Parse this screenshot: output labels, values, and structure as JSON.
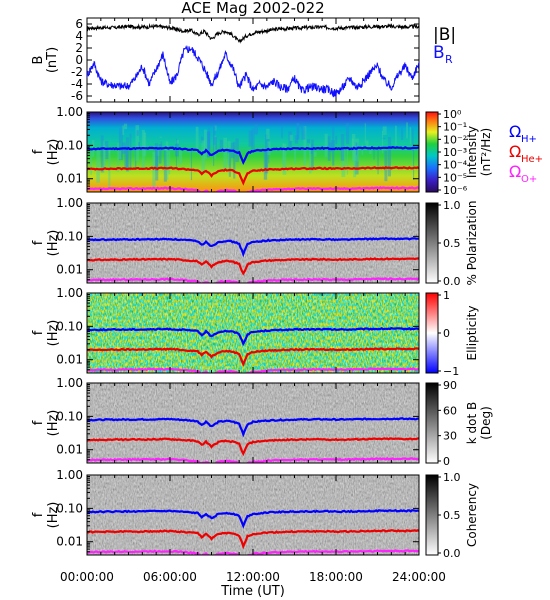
{
  "figure": {
    "title": "ACE Mag 2002-022",
    "time_axis": {
      "label": "Time (UT)",
      "ticks": [
        "00:00:00",
        "06:00:00",
        "12:00:00",
        "18:00:00",
        "24:00:00"
      ]
    },
    "freq_axis": {
      "label_f": "f",
      "label_unit": "(Hz)",
      "ticks": [
        "1.00",
        "0.10",
        "0.01"
      ]
    },
    "colors": {
      "bmag": "#000000",
      "br": "#1010ff",
      "h_plus": "#0000ff",
      "he_plus": "#ee0000",
      "o_plus": "#ff22ff",
      "background": "#ffffff"
    }
  },
  "legend": {
    "bmag": "|B|",
    "br": "B",
    "br_sub": "R",
    "omega": "Ω",
    "h_plus": "H+",
    "he_plus": "He+",
    "o_plus": "O+"
  },
  "chart_data": [
    {
      "type": "line",
      "panel": "magnetic-field",
      "xlabel": "Time (UT)",
      "ylabel": "B",
      "yunit": "(nT)",
      "xlim": [
        0,
        24
      ],
      "ylim": [
        -7,
        7
      ],
      "yticks": [
        "6",
        "4",
        "2",
        "0",
        "-2",
        "-4",
        "-6"
      ],
      "series": [
        {
          "name": "|B|",
          "x": [
            0,
            1,
            2,
            3,
            4,
            5,
            6,
            7,
            7.5,
            8,
            8.5,
            9,
            9.5,
            10,
            10.5,
            11,
            11.5,
            12,
            13,
            14,
            15,
            16,
            17,
            18,
            19,
            20,
            21,
            22,
            23,
            24
          ],
          "y": [
            5.3,
            5.4,
            5.4,
            5.6,
            5.5,
            5.6,
            5.4,
            4.8,
            5.0,
            4.2,
            4.8,
            3.5,
            4.5,
            4.8,
            4.2,
            3.0,
            4.0,
            4.5,
            4.9,
            5.2,
            5.3,
            5.4,
            5.5,
            5.3,
            5.4,
            5.5,
            5.6,
            5.6,
            5.5,
            5.6
          ]
        },
        {
          "name": "B_R",
          "x": [
            0,
            0.5,
            1,
            1.5,
            2,
            2.5,
            3,
            3.5,
            4,
            4.5,
            5,
            5.5,
            6,
            6.5,
            7,
            7.5,
            8,
            8.5,
            9,
            9.5,
            10,
            10.5,
            11,
            11.5,
            12,
            12.5,
            13,
            13.5,
            14,
            14.5,
            15,
            15.5,
            16,
            16.5,
            17,
            17.5,
            18,
            18.5,
            19,
            19.5,
            20,
            20.5,
            21,
            21.5,
            22,
            22.5,
            23,
            23.5,
            24
          ],
          "y": [
            -2.5,
            -0.5,
            -3.5,
            -4.0,
            -4.2,
            -4.4,
            -4.3,
            -3.0,
            -1.0,
            -4.0,
            -1.5,
            1.0,
            -4.0,
            -2.5,
            1.5,
            2.0,
            0.5,
            -1.5,
            -4.0,
            -2.0,
            1.0,
            -1.0,
            -4.5,
            -2.5,
            -5.0,
            -4.0,
            -4.5,
            -3.5,
            -4.5,
            -4.8,
            -3.0,
            -5.2,
            -4.6,
            -4.5,
            -4.8,
            -5.0,
            -5.6,
            -4.5,
            -3.0,
            -4.5,
            -3.5,
            -2.0,
            -1.0,
            -3.5,
            -4.5,
            -2.5,
            -1.0,
            -3.0,
            -0.5
          ]
        }
      ]
    },
    {
      "type": "heatmap",
      "panel": "intensity",
      "xlabel": "Time (UT)",
      "ylabel": "f (Hz)",
      "yscale": "log",
      "ylim": [
        0.004,
        1.0
      ],
      "colorbar": {
        "label": "Intensity",
        "unit": "(nT²/Hz)",
        "ticks": [
          "10⁰",
          "10⁻¹",
          "10⁻²",
          "10⁻³",
          "10⁻⁴",
          "10⁻⁵",
          "10⁻⁶"
        ]
      }
    },
    {
      "type": "heatmap",
      "panel": "polarization",
      "xlabel": "Time (UT)",
      "ylabel": "f (Hz)",
      "yscale": "log",
      "ylim": [
        0.004,
        1.0
      ],
      "colorbar": {
        "label": "% Polarization",
        "ticks": [
          "1.0",
          "0.5",
          "0.0"
        ]
      }
    },
    {
      "type": "heatmap",
      "panel": "ellipticity",
      "xlabel": "Time (UT)",
      "ylabel": "f (Hz)",
      "yscale": "log",
      "ylim": [
        0.004,
        1.0
      ],
      "colorbar": {
        "label": "Ellipticity",
        "ticks": [
          "1",
          "0",
          "−1"
        ]
      }
    },
    {
      "type": "heatmap",
      "panel": "k-dot-b",
      "xlabel": "Time (UT)",
      "ylabel": "f (Hz)",
      "yscale": "log",
      "ylim": [
        0.004,
        1.0
      ],
      "colorbar": {
        "label": "k dot B",
        "unit": "(Deg)",
        "ticks": [
          "90",
          "60",
          "30",
          "0"
        ]
      }
    },
    {
      "type": "heatmap",
      "panel": "coherency",
      "xlabel": "Time (UT)",
      "ylabel": "f (Hz)",
      "yscale": "log",
      "ylim": [
        0.004,
        1.0
      ],
      "colorbar": {
        "label": "Coherency",
        "ticks": [
          "1.0",
          "0.5",
          "0.0"
        ]
      }
    },
    {
      "type": "line",
      "panel": "gyrofrequencies",
      "note_series_overlaid_on_all_spectrogram_panels": true,
      "x": [
        0,
        2,
        4,
        6,
        7,
        8,
        8.3,
        8.6,
        9,
        9.5,
        10,
        10.5,
        11,
        11.3,
        11.6,
        12,
        13,
        14,
        15,
        16,
        17,
        18,
        19,
        20,
        21,
        22,
        23,
        24
      ],
      "series": [
        {
          "name": "Ω H+",
          "values": [
            0.078,
            0.08,
            0.081,
            0.083,
            0.078,
            0.072,
            0.055,
            0.07,
            0.05,
            0.068,
            0.073,
            0.07,
            0.06,
            0.03,
            0.058,
            0.068,
            0.075,
            0.078,
            0.08,
            0.081,
            0.082,
            0.08,
            0.081,
            0.083,
            0.084,
            0.085,
            0.084,
            0.085
          ]
        },
        {
          "name": "Ω He+",
          "values": [
            0.0195,
            0.02,
            0.0203,
            0.0208,
            0.0195,
            0.018,
            0.0138,
            0.0175,
            0.0125,
            0.017,
            0.0183,
            0.0175,
            0.015,
            0.0075,
            0.0145,
            0.017,
            0.0188,
            0.0195,
            0.02,
            0.0203,
            0.0205,
            0.02,
            0.0203,
            0.0208,
            0.021,
            0.0213,
            0.021,
            0.0213
          ]
        },
        {
          "name": "Ω O+",
          "values": [
            0.0049,
            0.005,
            0.0051,
            0.0052,
            0.0049,
            0.0045,
            0.0038,
            0.0044,
            0.0035,
            0.0043,
            0.0046,
            0.0044,
            0.004,
            0.003,
            0.0039,
            0.0043,
            0.0047,
            0.0049,
            0.005,
            0.0051,
            0.0051,
            0.005,
            0.0051,
            0.0052,
            0.0053,
            0.0053,
            0.0053,
            0.0053
          ]
        }
      ]
    }
  ]
}
